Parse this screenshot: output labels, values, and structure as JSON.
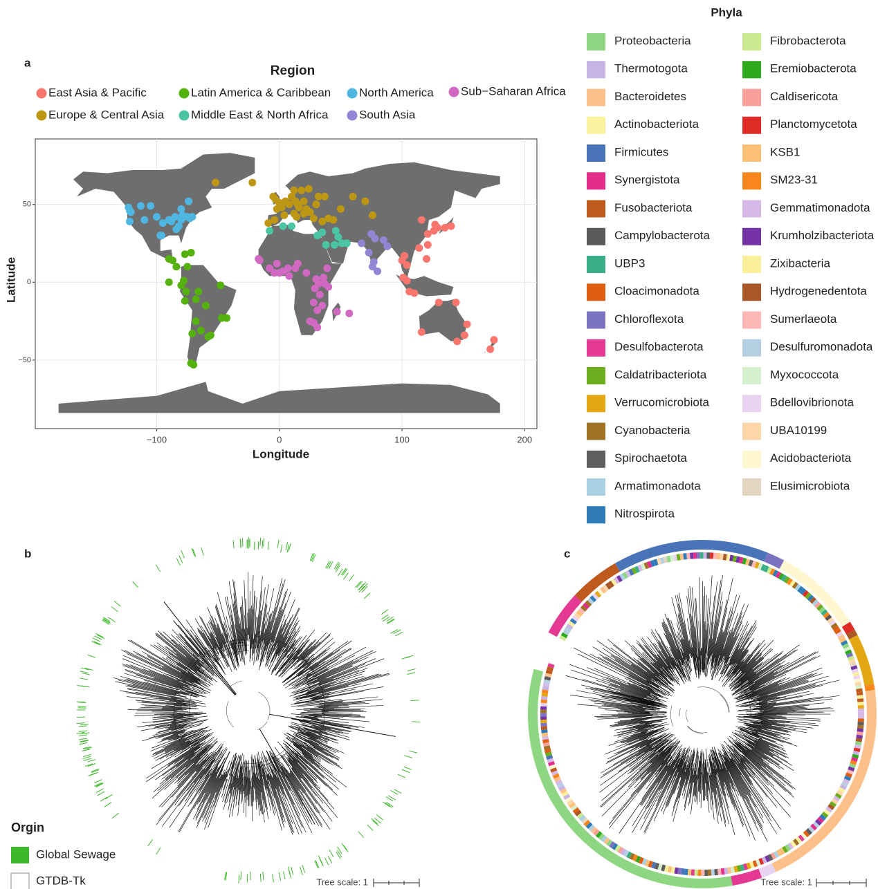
{
  "chart_data": [
    {
      "type": "scatter",
      "panel": "a",
      "title": "Region",
      "xlabel": "Longitude",
      "ylabel": "Latitude",
      "xlim": [
        -199,
        210
      ],
      "ylim": [
        -94,
        92
      ],
      "xticks": [
        {
          "value": -100,
          "label": "−100"
        },
        0,
        100,
        200
      ],
      "yticks": [
        {
          "value": -50,
          "label": "−50"
        },
        0,
        50
      ],
      "grid": true,
      "series": [
        {
          "name": "East Asia & Pacific",
          "color": "#F8766D",
          "x": [
            100,
            102,
            104,
            101,
            104,
            106,
            110,
            120,
            121,
            114,
            121,
            116,
            127,
            129,
            135,
            140,
            126,
            145,
            151,
            153,
            130,
            116,
            175,
            172,
            144
          ],
          "y": [
            14,
            17,
            11,
            3,
            1,
            -6,
            -7,
            15,
            24,
            22,
            31,
            40,
            37,
            35,
            35,
            36,
            33,
            -38,
            -34,
            -27,
            -13,
            -32,
            -37,
            -43,
            -13
          ]
        },
        {
          "name": "Latin America & Caribbean",
          "color": "#55B20E",
          "x": [
            -90,
            -87,
            -84,
            -77,
            -72,
            -90,
            -80,
            -78,
            -76,
            -77,
            -66,
            -48,
            -60,
            -47,
            -43,
            -56,
            -58,
            -64,
            -71,
            -68,
            -70,
            -72,
            -68,
            -75
          ],
          "y": [
            15,
            14,
            10,
            18,
            19,
            0,
            -2,
            1,
            -6,
            -12,
            -6,
            -2,
            -15,
            -23,
            -23,
            -34,
            -35,
            -31,
            -33,
            -25,
            -53,
            -52,
            -11,
            10
          ]
        },
        {
          "name": "North America",
          "color": "#4FB5E1",
          "x": [
            -123,
            -122,
            -121,
            -113,
            -105,
            -122,
            -110,
            -100,
            -95,
            -90,
            -85,
            -80,
            -75,
            -73,
            -71,
            -79,
            -84,
            -97,
            -96,
            -88,
            -82,
            -80,
            -74
          ],
          "y": [
            48,
            46,
            45,
            49,
            49,
            39,
            40,
            42,
            38,
            40,
            42,
            40,
            42,
            41,
            42,
            43,
            34,
            30,
            30,
            39,
            36,
            47,
            52
          ]
        },
        {
          "name": "Sub−Saharan Africa",
          "color": "#D168C2",
          "x": [
            -17,
            -16,
            -2,
            0,
            3,
            7,
            -4,
            -8,
            8,
            13,
            15,
            22,
            30,
            32,
            37,
            40,
            33,
            28,
            35,
            31,
            28,
            31,
            25,
            47,
            57,
            36,
            39,
            29
          ],
          "y": [
            15,
            14,
            12,
            6,
            7,
            9,
            6,
            9,
            4,
            9,
            12,
            6,
            2,
            -1,
            -1,
            -3,
            -8,
            -13,
            -15,
            -18,
            -26,
            -29,
            -25,
            -19,
            -20,
            3,
            9,
            -4
          ]
        },
        {
          "name": "Europe & Central Asia",
          "color": "#BD9713",
          "x": [
            -52,
            -22,
            -9,
            -4,
            -2,
            0,
            2,
            5,
            8,
            10,
            12,
            18,
            24,
            13,
            15,
            20,
            30,
            37,
            25,
            14,
            12,
            20,
            28,
            35,
            40,
            44,
            50,
            60,
            70,
            76,
            -5,
            4,
            16,
            22,
            32,
            -3
          ],
          "y": [
            64,
            64,
            38,
            40,
            47,
            51,
            48,
            52,
            50,
            55,
            59,
            59,
            60,
            52,
            50,
            52,
            50,
            55,
            45,
            42,
            44,
            44,
            41,
            39,
            41,
            40,
            47,
            55,
            52,
            43,
            55,
            43,
            48,
            47,
            55,
            53
          ]
        },
        {
          "name": "Middle East & North Africa",
          "color": "#49C5A3",
          "x": [
            -8,
            3,
            10,
            31,
            35,
            46,
            51,
            55,
            48,
            38,
            45
          ],
          "y": [
            33,
            36,
            36,
            30,
            32,
            33,
            25,
            25,
            29,
            24,
            24
          ]
        },
        {
          "name": "South Asia",
          "color": "#9285D4",
          "x": [
            67,
            73,
            77,
            80,
            78,
            88,
            85,
            75,
            76
          ],
          "y": [
            25,
            19,
            13,
            7,
            28,
            23,
            27,
            31,
            10
          ]
        }
      ]
    },
    {
      "type": "tree",
      "panel": "b",
      "legend_title": "Orgin",
      "scale_label": "Tree scale: 1",
      "legend": [
        {
          "name": "Global Sewage",
          "color": "#3DB82A"
        },
        {
          "name": "GTDB-Tk",
          "color": "#FFFFFF"
        }
      ]
    },
    {
      "type": "tree",
      "panel": "c",
      "legend_title": "Phyla",
      "scale_label": "Tree scale: 1",
      "legend": [
        {
          "name": "Proteobacteria",
          "color": "#8FD683"
        },
        {
          "name": "Thermotogota",
          "color": "#C8B4E4"
        },
        {
          "name": "Bacteroidetes",
          "color": "#FDC08A"
        },
        {
          "name": "Actinobacteriota",
          "color": "#FAF19E"
        },
        {
          "name": "Firmicutes",
          "color": "#4A74B8"
        },
        {
          "name": "Synergistota",
          "color": "#E42C8A"
        },
        {
          "name": "Fusobacteriota",
          "color": "#BE5A1E"
        },
        {
          "name": "Campylobacterota",
          "color": "#5A5A5A"
        },
        {
          "name": "UBP3",
          "color": "#3AAF86"
        },
        {
          "name": "Cloacimonadota",
          "color": "#DD5E10"
        },
        {
          "name": "Chloroflexota",
          "color": "#7B73C2"
        },
        {
          "name": "Desulfobacterota",
          "color": "#E43A93"
        },
        {
          "name": "Caldatribacteriota",
          "color": "#6AAE1E"
        },
        {
          "name": "Verrucomicrobiota",
          "color": "#E4A714"
        },
        {
          "name": "Cyanobacteria",
          "color": "#A07125"
        },
        {
          "name": "Spirochaetota",
          "color": "#5E5E5E"
        },
        {
          "name": "Armatimonadota",
          "color": "#A9D0E3"
        },
        {
          "name": "Nitrospirota",
          "color": "#2F7BB7"
        },
        {
          "name": "Fibrobacterota",
          "color": "#CBE98F"
        },
        {
          "name": "Eremiobacterota",
          "color": "#2FAA1E"
        },
        {
          "name": "Caldisericota",
          "color": "#F9A09A"
        },
        {
          "name": "Planctomycetota",
          "color": "#DE2C26"
        },
        {
          "name": "KSB1",
          "color": "#FDC077"
        },
        {
          "name": "SM23-31",
          "color": "#F7861C"
        },
        {
          "name": "Gemmatimonadota",
          "color": "#D7B9E7"
        },
        {
          "name": "Krumholzibacteriota",
          "color": "#7534A5"
        },
        {
          "name": "Zixibacteria",
          "color": "#FAF09B"
        },
        {
          "name": "Hydrogenedentota",
          "color": "#AA5728"
        },
        {
          "name": "Sumerlaeota",
          "color": "#FDB7B5"
        },
        {
          "name": "Desulfuromonadota",
          "color": "#B5D0E3"
        },
        {
          "name": "Myxococcota",
          "color": "#D5F0CC"
        },
        {
          "name": "Bdellovibrionota",
          "color": "#EAD3F0"
        },
        {
          "name": "UBA10199",
          "color": "#FDD6A9"
        },
        {
          "name": "Acidobacteriota",
          "color": "#FEF7D0"
        },
        {
          "name": "Elusimicrobiota",
          "color": "#E3D5BF"
        }
      ]
    }
  ]
}
